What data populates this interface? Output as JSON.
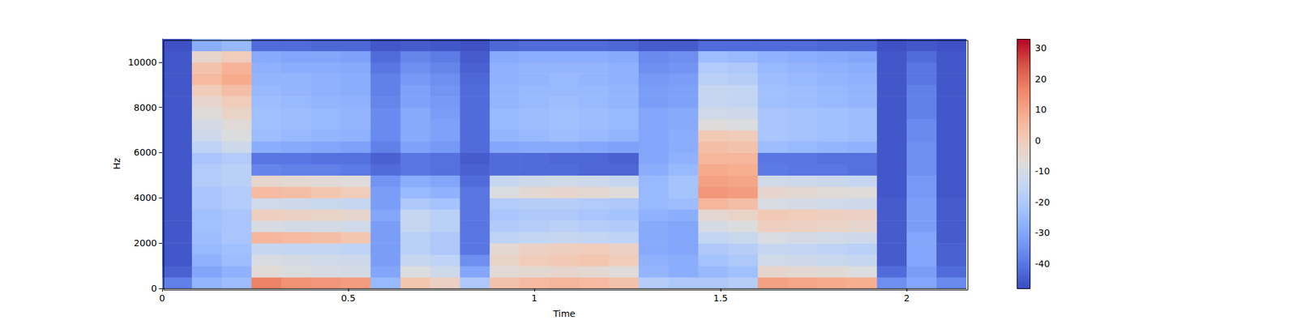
{
  "chart_data": {
    "type": "heatmap",
    "x_label": "Time",
    "y_label": "Hz",
    "xlim": [
      0,
      2.16
    ],
    "xticks": [
      0,
      0.5,
      1,
      1.5,
      2
    ],
    "ylim": [
      0,
      11025
    ],
    "yticks": [
      0,
      2000,
      4000,
      6000,
      8000,
      10000
    ],
    "grid": false,
    "x": [
      0,
      0.08,
      0.16,
      0.24,
      0.32,
      0.4,
      0.48,
      0.56,
      0.64,
      0.72,
      0.8,
      0.88,
      0.96,
      1.04,
      1.12,
      1.2,
      1.28,
      1.36,
      1.44,
      1.52,
      1.6,
      1.68,
      1.76,
      1.84,
      1.92,
      2.0,
      2.08
    ],
    "y": [
      0,
      500,
      1000,
      1500,
      2000,
      2500,
      3000,
      3500,
      4000,
      4500,
      5000,
      5500,
      6000,
      6500,
      7000,
      7500,
      8000,
      8500,
      9000,
      9500,
      10000,
      10500
    ],
    "cells": [
      [
        -38,
        -44,
        -46,
        -46,
        -46,
        -46,
        -46,
        -46,
        -46,
        -46,
        -46,
        -46,
        -46,
        -46,
        -46,
        -46,
        -46,
        -46,
        -46,
        -46,
        -46,
        -47
      ],
      [
        -26,
        -30,
        -27,
        -25,
        -24,
        -23,
        -23,
        -21,
        -21,
        -19,
        -19,
        -21,
        -16,
        -12,
        -10,
        -7,
        -4,
        0,
        5,
        3,
        -4,
        -28
      ],
      [
        -24,
        -27,
        -24,
        -23,
        -21,
        -21,
        -21,
        -19,
        -19,
        -17,
        -17,
        -19,
        -12,
        -8,
        -6,
        -3,
        0,
        4,
        9,
        7,
        0,
        -25
      ],
      [
        17,
        -6,
        -9,
        -14,
        6,
        -9,
        -1,
        -11,
        5,
        -4,
        -37,
        -40,
        -28,
        -24,
        -23,
        -23,
        -24,
        -25,
        -26,
        -27,
        -29,
        -42
      ],
      [
        14,
        -8,
        -10,
        -15,
        5,
        -10,
        -2,
        -12,
        4,
        -5,
        -38,
        -40,
        -29,
        -25,
        -24,
        -24,
        -25,
        -26,
        -26,
        -28,
        -30,
        -42
      ],
      [
        13,
        -9,
        -11,
        -15,
        4,
        -10,
        -3,
        -13,
        2,
        -6,
        -38,
        -41,
        -30,
        -26,
        -25,
        -25,
        -26,
        -27,
        -27,
        -28,
        -30,
        -43
      ],
      [
        12,
        -10,
        -12,
        -16,
        2,
        -11,
        -4,
        -14,
        0,
        -7,
        -39,
        -41,
        -31,
        -27,
        -26,
        -26,
        -27,
        -28,
        -28,
        -29,
        -31,
        -43
      ],
      [
        -25,
        -30,
        -32,
        -32,
        -32,
        -32,
        -30,
        -32,
        -32,
        -34,
        -42,
        -44,
        -38,
        -36,
        -36,
        -36,
        -37,
        -38,
        -38,
        -40,
        -42,
        -46
      ],
      [
        2,
        -8,
        -14,
        -17,
        -17,
        -14,
        -14,
        -20,
        -25,
        -28,
        -40,
        -40,
        -31,
        -29,
        -29,
        -29,
        -31,
        -31,
        -33,
        -35,
        -37,
        -45
      ],
      [
        -2,
        -12,
        -16,
        -20,
        -20,
        -17,
        -17,
        -22,
        -27,
        -30,
        -41,
        -41,
        -33,
        -31,
        -31,
        -32,
        -33,
        -34,
        -35,
        -37,
        -39,
        -46
      ],
      [
        -20,
        -30,
        -35,
        -40,
        -40,
        -40,
        -40,
        -40,
        -40,
        -42,
        -44,
        -45,
        -42,
        -42,
        -42,
        -42,
        -42,
        -42,
        -43,
        -44,
        -45,
        -47
      ],
      [
        3,
        -6,
        -3,
        -5,
        -16,
        -19,
        -21,
        -19,
        -8,
        -14,
        -42,
        -42,
        -30,
        -26,
        -25,
        -25,
        -26,
        -26,
        -27,
        -27,
        -29,
        -43
      ],
      [
        5,
        -5,
        0,
        -2,
        -15,
        -18,
        -20,
        -18,
        -5,
        -12,
        -42,
        -42,
        -29,
        -25,
        -24,
        -24,
        -25,
        -25,
        -26,
        -26,
        -28,
        -42
      ],
      [
        6,
        -4,
        1,
        -1,
        -14,
        -17,
        -20,
        -18,
        -4,
        -11,
        -42,
        -43,
        -29,
        -24,
        -23,
        -23,
        -24,
        -25,
        -25,
        -26,
        -28,
        -42
      ],
      [
        5,
        -5,
        2,
        0,
        -15,
        -18,
        -21,
        -19,
        -5,
        -12,
        -43,
        -43,
        -30,
        -25,
        -24,
        -24,
        -25,
        -25,
        -26,
        -26,
        -28,
        -42
      ],
      [
        3,
        -7,
        0,
        -2,
        -16,
        -19,
        -22,
        -20,
        -7,
        -14,
        -43,
        -44,
        -31,
        -26,
        -25,
        -25,
        -26,
        -26,
        -27,
        -27,
        -29,
        -43
      ],
      [
        -18,
        -26,
        -27,
        -29,
        -29,
        -29,
        -27,
        -25,
        -25,
        -25,
        -28,
        -30,
        -30,
        -30,
        -30,
        -30,
        -32,
        -32,
        -33,
        -35,
        -36,
        -45
      ],
      [
        -20,
        -28,
        -28,
        -30,
        -30,
        -30,
        -28,
        -24,
        -22,
        -22,
        -25,
        -27,
        -28,
        -28,
        -29,
        -29,
        -31,
        -31,
        -32,
        -34,
        -35,
        -45
      ],
      [
        -20,
        -25,
        -22,
        -20,
        -15,
        -10,
        -5,
        6,
        13,
        11,
        9,
        6,
        4,
        1,
        -7,
        -11,
        -14,
        -14,
        -17,
        -19,
        -24,
        -42
      ],
      [
        -18,
        -23,
        -20,
        -18,
        -13,
        -8,
        -3,
        4,
        12,
        10,
        8,
        6,
        3,
        0,
        -8,
        -12,
        -15,
        -15,
        -18,
        -20,
        -25,
        -42
      ],
      [
        11,
        -4,
        -11,
        -14,
        -9,
        -1,
        1,
        -9,
        -4,
        -11,
        -39,
        -40,
        -24,
        -21,
        -21,
        -21,
        -23,
        -23,
        -24,
        -25,
        -27,
        -42
      ],
      [
        10,
        -5,
        -12,
        -15,
        -10,
        -2,
        0,
        -10,
        -5,
        -12,
        -40,
        -40,
        -25,
        -22,
        -22,
        -22,
        -24,
        -24,
        -25,
        -26,
        -28,
        -42
      ],
      [
        9,
        -6,
        -13,
        -16,
        -11,
        -3,
        -1,
        -11,
        -6,
        -13,
        -40,
        -41,
        -26,
        -23,
        -23,
        -23,
        -25,
        -25,
        -26,
        -27,
        -29,
        -43
      ],
      [
        8,
        -8,
        -14,
        -17,
        -12,
        -4,
        -2,
        -12,
        -7,
        -14,
        -41,
        -41,
        -27,
        -24,
        -24,
        -24,
        -26,
        -26,
        -27,
        -28,
        -30,
        -43
      ],
      [
        -35,
        -42,
        -45,
        -45,
        -45,
        -45,
        -45,
        -45,
        -46,
        -46,
        -46,
        -46,
        -46,
        -46,
        -46,
        -46,
        -46,
        -46,
        -46,
        -46,
        -46,
        -47
      ],
      [
        -30,
        -32,
        -30,
        -30,
        -30,
        -32,
        -32,
        -32,
        -33,
        -33,
        -35,
        -35,
        -35,
        -36,
        -36,
        -38,
        -38,
        -38,
        -40,
        -40,
        -42,
        -46
      ],
      [
        -36,
        -42,
        -44,
        -44,
        -45,
        -45,
        -45,
        -45,
        -46,
        -46,
        -46,
        -46,
        -46,
        -46,
        -46,
        -46,
        -46,
        -46,
        -46,
        -46,
        -46,
        -47
      ]
    ],
    "colorbar_lim": [
      -48,
      33
    ],
    "colorbar_ticks": [
      -40,
      -30,
      -20,
      -10,
      0,
      10,
      20,
      30
    ]
  }
}
